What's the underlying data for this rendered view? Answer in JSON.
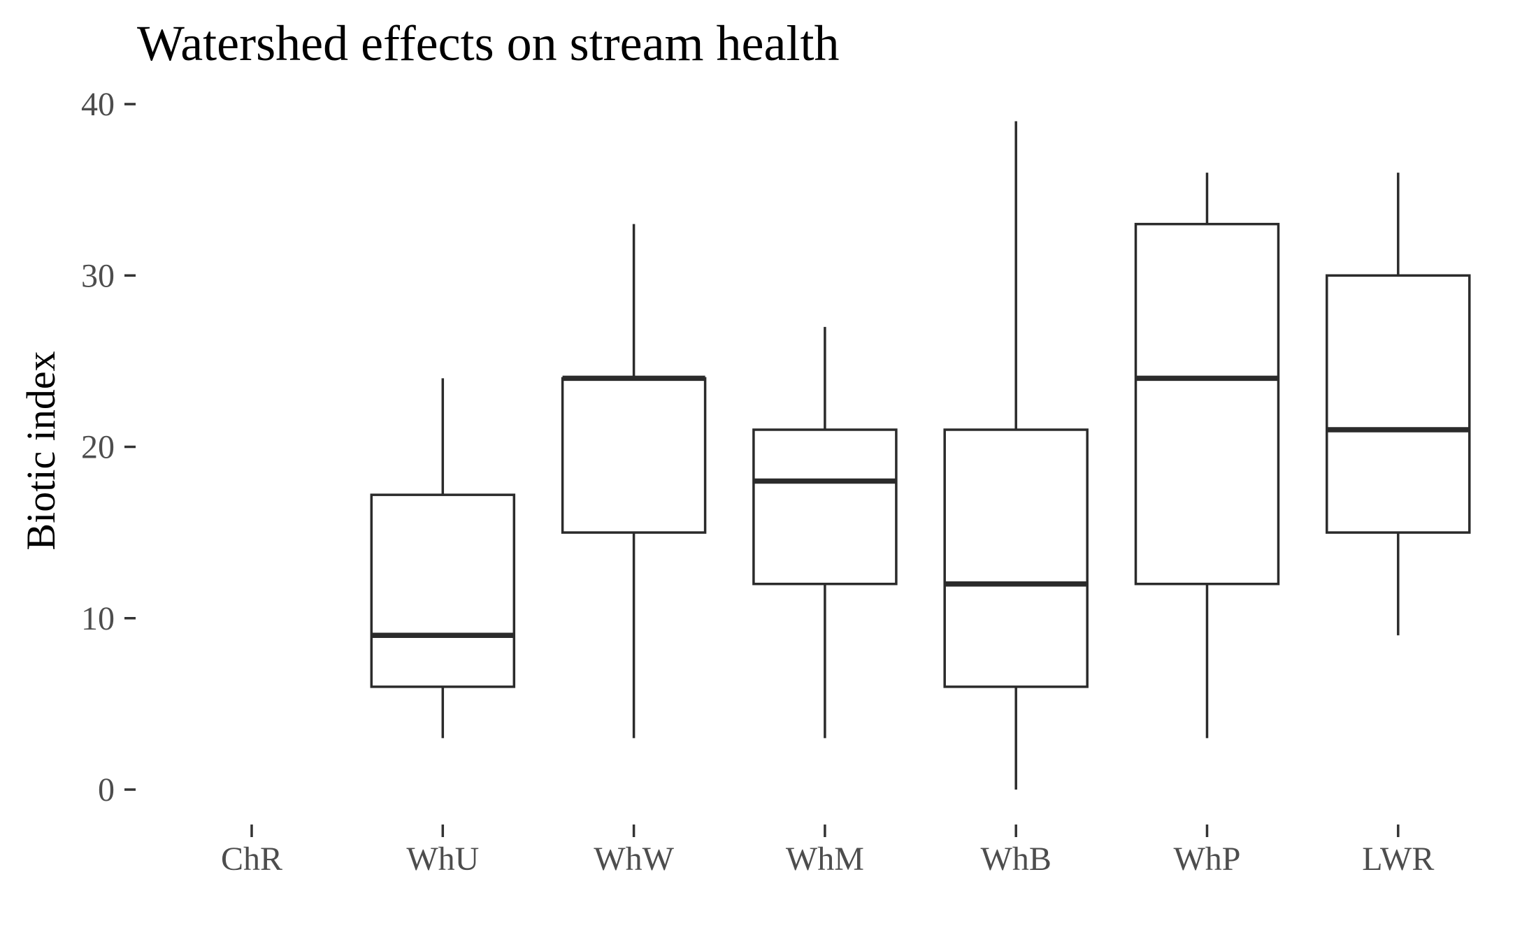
{
  "chart_data": {
    "type": "boxplot",
    "title": "Watershed effects on stream health",
    "xlabel": "",
    "ylabel": "Biotic index",
    "ylim": [
      -2,
      41
    ],
    "yticks": [
      0,
      10,
      20,
      30,
      40
    ],
    "grid": false,
    "categories": [
      "ChR",
      "WhU",
      "WhW",
      "WhM",
      "WhB",
      "WhP",
      "LWR"
    ],
    "boxes": [
      null,
      {
        "min": 3,
        "q1": 6,
        "median": 9,
        "q3": 17.2,
        "max": 24
      },
      {
        "min": 3,
        "q1": 15,
        "median": 24,
        "q3": 24,
        "max": 33
      },
      {
        "min": 3,
        "q1": 12,
        "median": 18,
        "q3": 21,
        "max": 27
      },
      {
        "min": 0,
        "q1": 6,
        "median": 12,
        "q3": 21,
        "max": 39
      },
      {
        "min": 3,
        "q1": 12,
        "median": 24,
        "q3": 33,
        "max": 36
      },
      {
        "min": 9,
        "q1": 15,
        "median": 21,
        "q3": 30,
        "max": 36
      }
    ]
  }
}
